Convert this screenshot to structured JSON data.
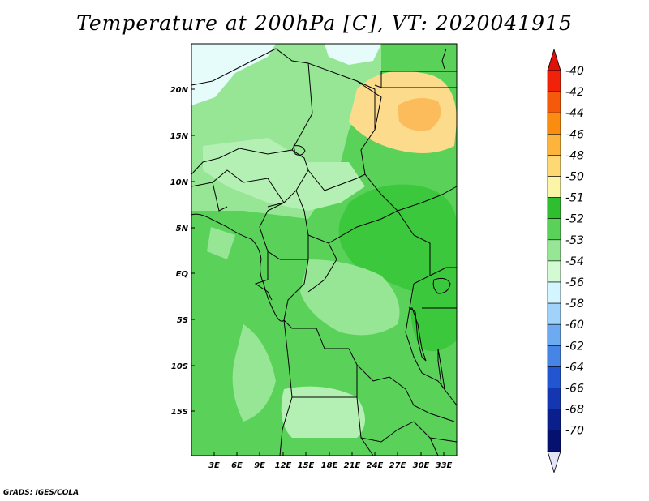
{
  "title": "Temperature at 200hPa [C], VT: 2020041915",
  "credit": "GrADS: IGES/COLA",
  "lat_labels": [
    "20N",
    "15N",
    "10N",
    "5N",
    "EQ",
    "5S",
    "10S",
    "15S"
  ],
  "lon_labels": [
    "3E",
    "6E",
    "9E",
    "12E",
    "15E",
    "18E",
    "21E",
    "24E",
    "27E",
    "30E",
    "33E"
  ],
  "colorbar": {
    "labels": [
      "-40",
      "-42",
      "-44",
      "-46",
      "-48",
      "-50",
      "-51",
      "-52",
      "-53",
      "-54",
      "-56",
      "-58",
      "-60",
      "-62",
      "-64",
      "-66",
      "-68",
      "-70"
    ],
    "colors": [
      "#f0220a",
      "#f55a0a",
      "#fa8c0f",
      "#fcb43c",
      "#fdd873",
      "#fcf5a8",
      "#2fbe2f",
      "#5ad25a",
      "#96e696",
      "#d4fad4",
      "#d2f5ff",
      "#a0d2fa",
      "#6eaaf0",
      "#4684e6",
      "#2256d0",
      "#1436b0",
      "#0a1e8c",
      "#06106e"
    ],
    "top_arrow_color": "#e0100a",
    "bottom_arrow_color": "#e4e4f8"
  },
  "colors": {
    "ocean": "#5ad25a",
    "mid": "#96e696",
    "light": "#b4f0b4",
    "dark": "#3cc83c",
    "warm": "#fcdc8c",
    "hot": "#fcbc5c",
    "pale": "#e6fcfa",
    "border": "#000000"
  }
}
